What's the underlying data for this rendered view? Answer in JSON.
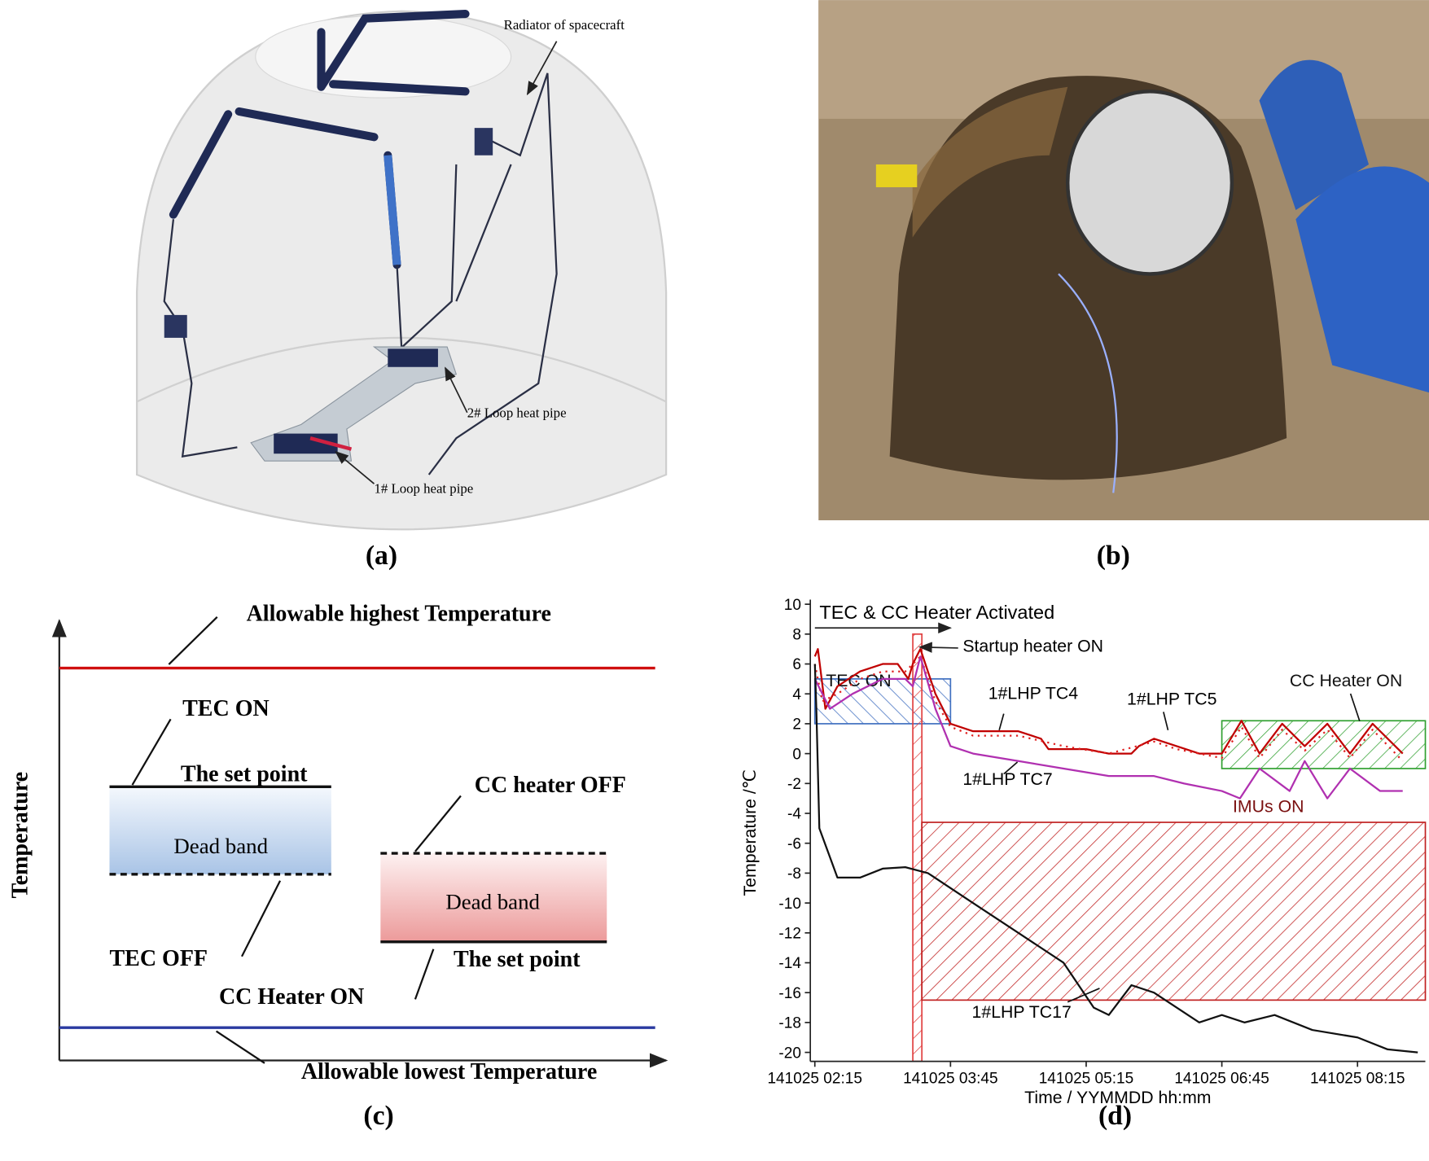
{
  "panel_a": {
    "caption": "(a)",
    "labels": [
      "Radiator of spacecraft",
      "2# Loop heat pipe",
      "1# Loop heat pipe"
    ]
  },
  "panel_b": {
    "caption": "(b)"
  },
  "panel_c": {
    "caption": "(c)",
    "axis_label": "Temperature",
    "labels": [
      "Allowable highest Temperature",
      "TEC ON",
      "The set point",
      "Dead band",
      "TEC OFF",
      "CC heater OFF",
      "Dead band",
      "The set point",
      "CC Heater ON",
      "Allowable lowest Temperature"
    ]
  },
  "chart_data": {
    "type": "line",
    "caption": "(d)",
    "x_label": "Time / YYMMDD hh:mm",
    "y_label": "Temperature /℃",
    "xlim": [
      "141025 02:12",
      "141025 09:00"
    ],
    "xticks": [
      "141025 02:15",
      "141025 03:45",
      "141025 05:15",
      "141025 06:45",
      "141025 08:15"
    ],
    "ylim": [
      -20.6,
      10
    ],
    "yticks": [
      -20,
      -18,
      -16,
      -14,
      -12,
      -10,
      -8,
      -6,
      -4,
      -2,
      0,
      2,
      4,
      6,
      8,
      10
    ],
    "annotations": [
      "TEC & CC Heater Activated",
      "Startup heater ON"
    ],
    "regions": [
      {
        "label": "TEC ON",
        "x": [
          "141025 02:15",
          "141025 03:45"
        ],
        "y": [
          2,
          5
        ],
        "color": "#3f6fc0"
      },
      {
        "x": [
          "141025 03:20",
          "141025 03:26"
        ],
        "y": [
          -20.6,
          8
        ],
        "color": "#e04040"
      },
      {
        "label": "IMUs ON",
        "x": [
          "141025 03:26",
          "141025 09:00"
        ],
        "y": [
          -16.5,
          -4.6
        ],
        "color": "#c02020"
      },
      {
        "label": "CC Heater ON",
        "x": [
          "141025 06:45",
          "141025 09:00"
        ],
        "y": [
          -1,
          2.2
        ],
        "color": "#30a030"
      }
    ],
    "series": [
      {
        "name": "1#LHP TC4",
        "color": "#c00000",
        "dash": false,
        "x": [
          "141025 02:15",
          "141025 02:17",
          "141025 02:22",
          "141025 02:30",
          "141025 02:45",
          "141025 03:00",
          "141025 03:10",
          "141025 03:17",
          "141025 03:20",
          "141025 03:25",
          "141025 03:35",
          "141025 03:45",
          "141025 04:00",
          "141025 04:30",
          "141025 04:45",
          "141025 04:50",
          "141025 05:15",
          "141025 05:30",
          "141025 05:45",
          "141025 05:50",
          "141025 06:00",
          "141025 06:15",
          "141025 06:30",
          "141025 06:45",
          "141025 06:58",
          "141025 07:10",
          "141025 07:25",
          "141025 07:40",
          "141025 07:55",
          "141025 08:10",
          "141025 08:25",
          "141025 08:45"
        ],
        "values": [
          6.5,
          7,
          3,
          4.5,
          5.5,
          6,
          6,
          5,
          6,
          7,
          4,
          2,
          1.5,
          1.5,
          1,
          0.3,
          0.3,
          0,
          0,
          0.5,
          1,
          0.5,
          0,
          0,
          2.2,
          0,
          2,
          0.5,
          2,
          0,
          2,
          0
        ]
      },
      {
        "name": "1#LHP TC5",
        "color": "#e02020",
        "dash": true,
        "x": [
          "141025 02:15",
          "141025 02:20",
          "141025 02:30",
          "141025 02:45",
          "141025 03:00",
          "141025 03:15",
          "141025 03:25",
          "141025 03:35",
          "141025 03:45",
          "141025 04:00",
          "141025 04:30",
          "141025 05:00",
          "141025 05:30",
          "141025 06:00",
          "141025 06:15",
          "141025 06:45",
          "141025 06:58",
          "141025 07:10",
          "141025 07:25",
          "141025 07:40",
          "141025 07:55",
          "141025 08:10",
          "141025 08:25",
          "141025 08:45"
        ],
        "values": [
          6,
          3.5,
          4,
          5,
          5.5,
          5.5,
          6.5,
          3.5,
          1.8,
          1.2,
          1.2,
          0.5,
          0,
          0.8,
          0.3,
          -0.3,
          1.8,
          -0.3,
          1.6,
          0.2,
          1.6,
          -0.3,
          1.6,
          -0.5
        ]
      },
      {
        "name": "1#LHP TC7",
        "color": "#b030b0",
        "dash": false,
        "x": [
          "141025 02:15",
          "141025 02:25",
          "141025 02:40",
          "141025 03:00",
          "141025 03:15",
          "141025 03:20",
          "141025 03:25",
          "141025 03:35",
          "141025 03:45",
          "141025 04:00",
          "141025 04:30",
          "141025 05:00",
          "141025 05:30",
          "141025 06:00",
          "141025 06:20",
          "141025 06:45",
          "141025 06:57",
          "141025 07:10",
          "141025 07:30",
          "141025 07:40",
          "141025 07:55",
          "141025 08:10",
          "141025 08:30",
          "141025 08:45"
        ],
        "values": [
          5,
          3,
          4,
          5,
          5,
          4.5,
          6.5,
          3,
          0.5,
          0,
          -0.5,
          -1,
          -1.5,
          -1.5,
          -2,
          -2.5,
          -3,
          -1,
          -2.5,
          -0.5,
          -3,
          -1,
          -2.5,
          -2.5
        ]
      },
      {
        "name": "1#LHP TC17",
        "color": "#111111",
        "dash": false,
        "x": [
          "141025 02:15",
          "141025 02:16",
          "141025 02:18",
          "141025 02:30",
          "141025 02:45",
          "141025 03:00",
          "141025 03:15",
          "141025 03:30",
          "141025 04:00",
          "141025 04:30",
          "141025 05:00",
          "141025 05:20",
          "141025 05:30",
          "141025 05:45",
          "141025 06:00",
          "141025 06:30",
          "141025 06:45",
          "141025 07:00",
          "141025 07:20",
          "141025 07:45",
          "141025 08:15",
          "141025 08:35",
          "141025 08:55"
        ],
        "values": [
          6,
          3,
          -5,
          -8.3,
          -8.3,
          -7.7,
          -7.6,
          -8,
          -10,
          -12,
          -14,
          -17,
          -17.5,
          -15.5,
          -16,
          -18,
          -17.5,
          -18,
          -17.5,
          -18.5,
          -19,
          -19.8,
          -20
        ]
      }
    ]
  }
}
